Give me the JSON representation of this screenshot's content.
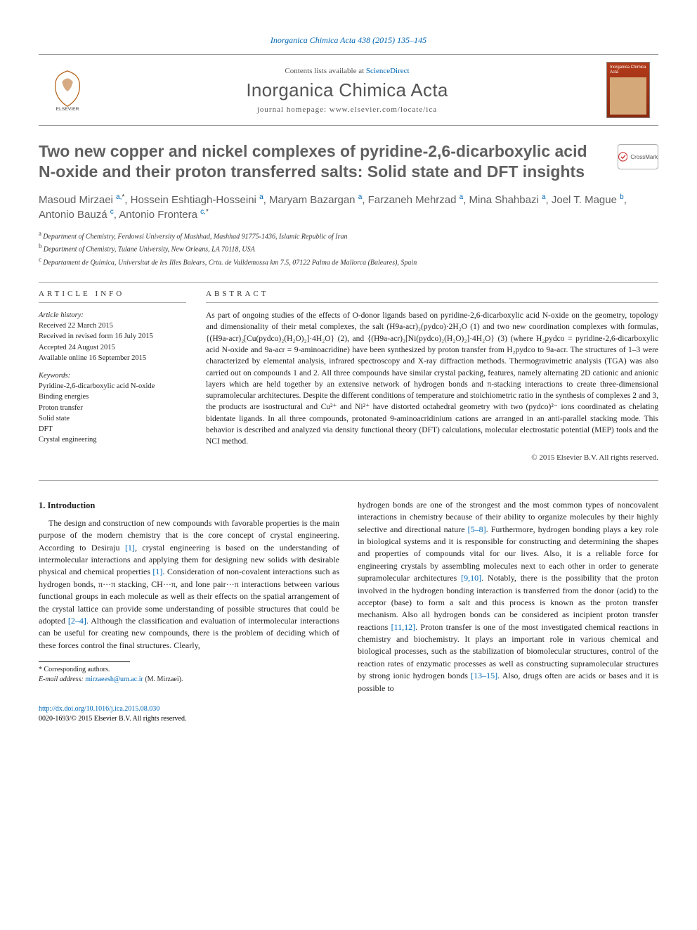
{
  "top_reference": "Inorganica Chimica Acta 438 (2015) 135–145",
  "header": {
    "contents_line_prefix": "Contents lists available at ",
    "contents_link": "ScienceDirect",
    "journal_name": "Inorganica Chimica Acta",
    "homepage_prefix": "journal homepage: ",
    "homepage_url": "www.elsevier.com/locate/ica",
    "logo_label": "ELSEVIER",
    "cover_title": "Inorganica Chimica Acta"
  },
  "crossmark_label": "CrossMark",
  "title": "Two new copper and nickel complexes of pyridine-2,6-dicarboxylic acid N-oxide and their proton transferred salts: Solid state and DFT insights",
  "authors_html_parts": [
    {
      "name": "Masoud Mirzaei",
      "sup": "a,",
      "star": "*"
    },
    {
      "name": ", Hossein Eshtiagh-Hosseini",
      "sup": "a"
    },
    {
      "name": ", Maryam Bazargan",
      "sup": "a"
    },
    {
      "name": ", Farzaneh Mehrzad",
      "sup": "a"
    },
    {
      "name": ", Mina Shahbazi",
      "sup": "a"
    },
    {
      "name": ", Joel T. Mague",
      "sup": "b"
    },
    {
      "name": ", Antonio Bauzá",
      "sup": "c"
    },
    {
      "name": ", Antonio Frontera",
      "sup": "c,",
      "star": "*"
    }
  ],
  "affiliations": [
    {
      "sup": "a",
      "text": "Department of Chemistry, Ferdowsi University of Mashhad, Mashhad 91775-1436, Islamic Republic of Iran"
    },
    {
      "sup": "b",
      "text": "Department of Chemistry, Tulane University, New Orleans, LA 70118, USA"
    },
    {
      "sup": "c",
      "text": "Departament de Química, Universitat de les Illes Balears, Crta. de Valldemossa km 7.5, 07122 Palma de Mallorca (Baleares), Spain"
    }
  ],
  "article_info": {
    "head": "ARTICLE INFO",
    "history_label": "Article history:",
    "history": [
      "Received 22 March 2015",
      "Received in revised form 16 July 2015",
      "Accepted 24 August 2015",
      "Available online 16 September 2015"
    ],
    "keywords_label": "Keywords:",
    "keywords": [
      "Pyridine-2,6-dicarboxylic acid N-oxide",
      "Binding energies",
      "Proton transfer",
      "Solid state",
      "DFT",
      "Crystal engineering"
    ]
  },
  "abstract": {
    "head": "ABSTRACT",
    "text": "As part of ongoing studies of the effects of O-donor ligands based on pyridine-2,6-dicarboxylic acid N-oxide on the geometry, topology and dimensionality of their metal complexes, the salt (H9a-acr)₂(pydco)·2H₂O (1) and two new coordination complexes with formulas, {(H9a-acr)₂[Cu(pydco)₂(H₂O)₂]·4H₂O} (2), and {(H9a-acr)₂[Ni(pydco)₂(H₂O)₂]·4H₂O} (3) (where H₂pydco = pyridine-2,6-dicarboxylic acid N-oxide and 9a-acr = 9-aminoacridine) have been synthesized by proton transfer from H₂pydco to 9a-acr. The structures of 1–3 were characterized by elemental analysis, infrared spectroscopy and X-ray diffraction methods. Thermogravimetric analysis (TGA) was also carried out on compounds 1 and 2. All three compounds have similar crystal packing, features, namely alternating 2D cationic and anionic layers which are held together by an extensive network of hydrogen bonds and π-stacking interactions to create three-dimensional supramolecular architectures. Despite the different conditions of temperature and stoichiometric ratio in the synthesis of complexes 2 and 3, the products are isostructural and Cu²⁺ and Ni²⁺ have distorted octahedral geometry with two (pydco)²⁻ ions coordinated as chelating bidentate ligands. In all three compounds, protonated 9-aminoacridinium cations are arranged in an anti-parallel stacking mode. This behavior is described and analyzed via density functional theory (DFT) calculations, molecular electrostatic potential (MEP) tools and the NCI method.",
    "copyright": "© 2015 Elsevier B.V. All rights reserved."
  },
  "body": {
    "section_title": "1. Introduction",
    "p1": "The design and construction of new compounds with favorable properties is the main purpose of the modern chemistry that is the core concept of crystal engineering. According to Desiraju [1], crystal engineering is based on the understanding of intermolecular interactions and applying them for designing new solids with desirable physical and chemical properties [1]. Consideration of non-covalent interactions such as hydrogen bonds, π···π stacking, CH···π, and lone pair···π interactions between various functional groups in each molecule as well as their effects on the spatial arrangement of the crystal lattice can provide some understanding of possible structures that could be adopted [2–4]. Although the classification and evaluation of intermolecular interactions can be useful for creating new compounds, there is the problem of deciding which of these forces control the final structures. Clearly,",
    "p2": "hydrogen bonds are one of the strongest and the most common types of noncovalent interactions in chemistry because of their ability to organize molecules by their highly selective and directional nature [5–8]. Furthermore, hydrogen bonding plays a key role in biological systems and it is responsible for constructing and determining the shapes and properties of compounds vital for our lives. Also, it is a reliable force for engineering crystals by assembling molecules next to each other in order to generate supramolecular architectures [9,10]. Notably, there is the possibility that the proton involved in the hydrogen bonding interaction is transferred from the donor (acid) to the acceptor (base) to form a salt and this process is known as the proton transfer mechanism. Also all hydrogen bonds can be considered as incipient proton transfer reactions [11,12]. Proton transfer is one of the most investigated chemical reactions in chemistry and biochemistry. It plays an important role in various chemical and biological processes, such as the stabilization of biomolecular structures, control of the reaction rates of enzymatic processes as well as constructing supramolecular structures by strong ionic hydrogen bonds [13–15]. Also, drugs often are acids or bases and it is possible to"
  },
  "footnotes": {
    "corr_label": "* Corresponding authors.",
    "email_label": "E-mail address:",
    "email": "mirzaeesh@um.ac.ir",
    "email_who": "(M. Mirzaei)."
  },
  "bottom": {
    "doi": "http://dx.doi.org/10.1016/j.ica.2015.08.030",
    "issn_line": "0020-1693/© 2015 Elsevier B.V. All rights reserved."
  },
  "colors": {
    "link": "#0066b3",
    "title_gray": "#606060",
    "cover_top": "#b33a1a",
    "cover_bottom": "#8a2a10"
  }
}
